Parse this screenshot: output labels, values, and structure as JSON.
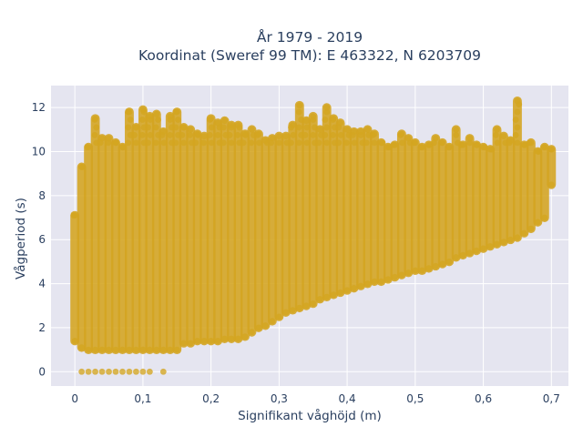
{
  "chart_data": {
    "type": "scatter",
    "title": "År 1979 - 2019",
    "subtitle": "Koordinat (Sweref 99 TM): E 463322, N 6203709",
    "xlabel": "Signifikant våghöjd (m)",
    "ylabel": "Vågperiod (s)",
    "xlim": [
      -0.035,
      0.725
    ],
    "ylim": [
      -0.65,
      13
    ],
    "xticks": [
      0,
      0.1,
      0.2,
      0.3,
      0.4,
      0.5,
      0.6,
      0.7
    ],
    "xtick_labels": [
      "0",
      "0,1",
      "0,2",
      "0,3",
      "0,4",
      "0,5",
      "0,6",
      "0,7"
    ],
    "yticks": [
      0,
      2,
      4,
      6,
      8,
      10,
      12
    ],
    "ytick_labels": [
      "0",
      "2",
      "4",
      "6",
      "8",
      "10",
      "12"
    ],
    "grid": true,
    "marker_color": "#d4a520",
    "plot_background": "#e5e5f0",
    "series": [
      {
        "x_bins_m": [
          0.0,
          0.01,
          0.02,
          0.03,
          0.04,
          0.05,
          0.06,
          0.07,
          0.08,
          0.09,
          0.1,
          0.11,
          0.12,
          0.13,
          0.14,
          0.15,
          0.16,
          0.17,
          0.18,
          0.19,
          0.2,
          0.21,
          0.22,
          0.23,
          0.24,
          0.25,
          0.26,
          0.27,
          0.28,
          0.29,
          0.3,
          0.31,
          0.32,
          0.33,
          0.34,
          0.35,
          0.36,
          0.37,
          0.38,
          0.39,
          0.4,
          0.41,
          0.42,
          0.43,
          0.44,
          0.45,
          0.46,
          0.47,
          0.48,
          0.49,
          0.5,
          0.51,
          0.52,
          0.53,
          0.54,
          0.55,
          0.56,
          0.57,
          0.58,
          0.59,
          0.6,
          0.61,
          0.62,
          0.63,
          0.64,
          0.65,
          0.66,
          0.67,
          0.68,
          0.69,
          0.7
        ],
        "period_min_s": [
          1.4,
          1.1,
          1.0,
          1.0,
          1.0,
          1.0,
          1.0,
          1.0,
          1.0,
          1.0,
          1.0,
          1.0,
          1.0,
          1.0,
          1.0,
          1.0,
          1.3,
          1.3,
          1.4,
          1.4,
          1.4,
          1.4,
          1.5,
          1.5,
          1.5,
          1.6,
          1.8,
          2.0,
          2.1,
          2.3,
          2.5,
          2.7,
          2.8,
          2.9,
          3.0,
          3.1,
          3.3,
          3.4,
          3.5,
          3.6,
          3.7,
          3.8,
          3.9,
          4.0,
          4.1,
          4.1,
          4.2,
          4.3,
          4.4,
          4.5,
          4.6,
          4.6,
          4.7,
          4.8,
          4.9,
          5.0,
          5.2,
          5.3,
          5.4,
          5.5,
          5.6,
          5.7,
          5.8,
          5.9,
          6.0,
          6.1,
          6.3,
          6.5,
          6.8,
          7.0,
          8.5
        ],
        "period_max_s": [
          7.1,
          9.3,
          10.2,
          11.5,
          10.6,
          10.6,
          10.4,
          10.2,
          11.8,
          11.1,
          11.9,
          11.6,
          11.7,
          10.9,
          11.6,
          11.8,
          11.1,
          11.0,
          10.8,
          10.7,
          11.5,
          11.3,
          11.4,
          11.2,
          11.2,
          10.8,
          11.0,
          10.8,
          10.5,
          10.6,
          10.7,
          10.7,
          11.2,
          12.1,
          11.4,
          11.6,
          11.0,
          12.0,
          11.5,
          11.3,
          11.0,
          10.9,
          10.9,
          11.0,
          10.8,
          10.4,
          10.2,
          10.3,
          10.8,
          10.6,
          10.4,
          10.2,
          10.3,
          10.6,
          10.4,
          10.2,
          11.0,
          10.3,
          10.6,
          10.3,
          10.2,
          10.1,
          11.0,
          10.7,
          10.5,
          12.3,
          10.3,
          10.4,
          10.0,
          10.2,
          10.1
        ]
      }
    ],
    "zero_period_points": {
      "x": [
        0.01,
        0.02,
        0.03,
        0.04,
        0.05,
        0.06,
        0.07,
        0.08,
        0.09,
        0.1,
        0.11,
        0.13
      ],
      "y": [
        0,
        0,
        0,
        0,
        0,
        0,
        0,
        0,
        0,
        0,
        0,
        0
      ]
    }
  }
}
